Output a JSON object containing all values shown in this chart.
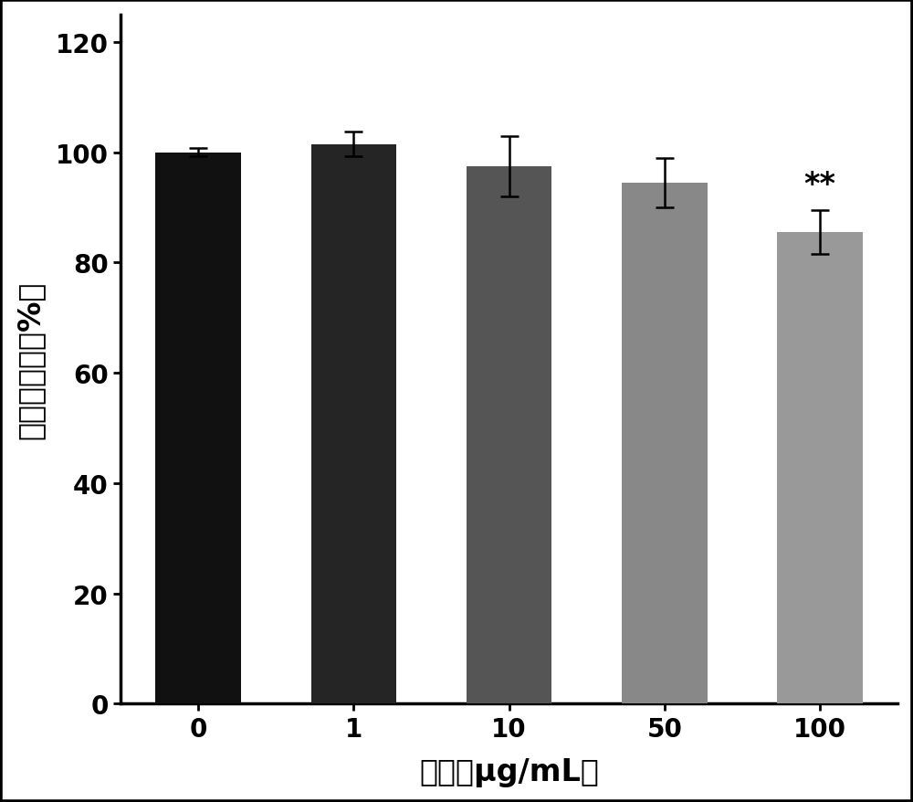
{
  "categories": [
    "0",
    "1",
    "10",
    "50",
    "100"
  ],
  "values": [
    100.0,
    101.5,
    97.5,
    94.5,
    85.5
  ],
  "errors": [
    0.8,
    2.2,
    5.5,
    4.5,
    4.0
  ],
  "bar_colors": [
    "#111111",
    "#252525",
    "#555555",
    "#888888",
    "#999999"
  ],
  "xlabel": "浓度（μg/mL）",
  "ylabel": "细胞存活率（%）",
  "ylim": [
    0,
    125
  ],
  "yticks": [
    0,
    20,
    40,
    60,
    80,
    100,
    120
  ],
  "significance": {
    "index": 4,
    "label": "**"
  },
  "bar_width": 0.55,
  "figsize": [
    10.0,
    8.79
  ],
  "dpi": 100,
  "background_color": "#ffffff",
  "border_color": "#000000",
  "tick_fontsize": 20,
  "label_fontsize": 24,
  "sig_fontsize": 24,
  "errorbar_color": "#000000",
  "errorbar_linewidth": 1.8,
  "errorbar_capsize": 7,
  "errorbar_capthick": 1.8,
  "outer_border_linewidth": 4
}
